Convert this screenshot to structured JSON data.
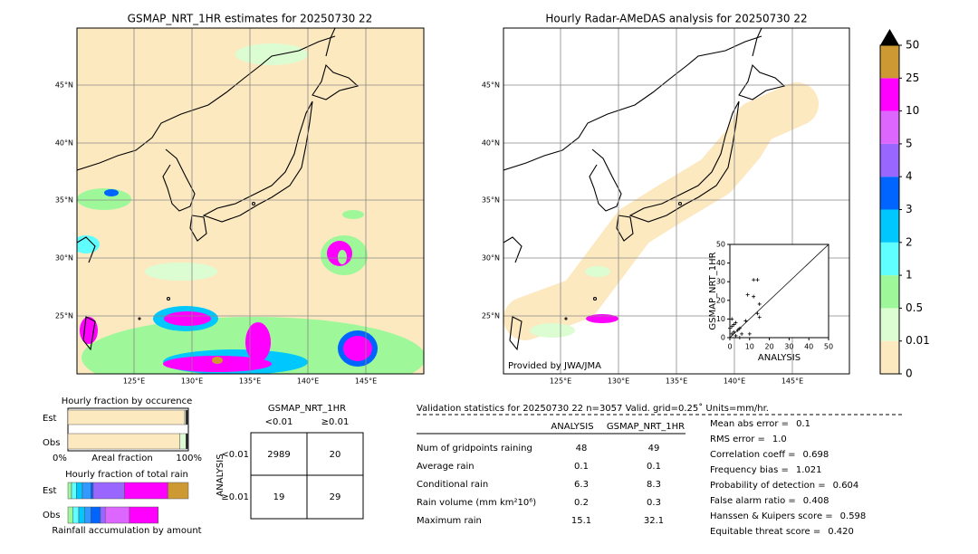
{
  "maps": {
    "left": {
      "title": "GSMAP_NRT_1HR estimates for 20250730 22"
    },
    "right": {
      "title": "Hourly Radar-AMeDAS analysis for 20250730 22",
      "credit": "Provided by JWA/JMA"
    },
    "lat_labels": [
      "45°N",
      "40°N",
      "35°N",
      "30°N",
      "25°N"
    ],
    "lon_labels": [
      "125°E",
      "130°E",
      "135°E",
      "140°E",
      "145°E"
    ]
  },
  "scatter": {
    "type": "scatter",
    "xlabel": "ANALYSIS",
    "ylabel": "GSMAP_NRT_1HR",
    "xlim": [
      0,
      50
    ],
    "ylim": [
      0,
      50
    ],
    "xticks": [
      0,
      10,
      20,
      30,
      40,
      50
    ],
    "yticks": [
      0,
      10,
      20,
      30,
      40,
      50
    ],
    "x": [
      0,
      1,
      2,
      3,
      5,
      8,
      10,
      12,
      14,
      9,
      12,
      15,
      15,
      14,
      1,
      3,
      5,
      0,
      1,
      6,
      4,
      2
    ],
    "y": [
      0,
      2,
      7,
      8,
      5,
      9,
      2,
      31,
      31,
      23,
      22,
      18,
      11,
      13,
      10,
      1,
      0,
      5,
      6,
      2,
      4,
      3
    ]
  },
  "colorbar": {
    "levels": [
      0,
      0.01,
      0.5,
      1,
      2,
      3,
      4,
      5,
      10,
      25,
      50
    ],
    "colors": [
      "#fde9c0",
      "#dcfcd2",
      "#9ef89a",
      "#60ffff",
      "#00c8ff",
      "#0064ff",
      "#9966ff",
      "#dd66ff",
      "#ff00ff",
      "#cc9933"
    ]
  },
  "fraction_occurrence": {
    "title": "Hourly fraction by occurence",
    "rows": [
      "Est",
      "Obs"
    ],
    "xmin_label": "0%",
    "xlabel": "Areal fraction",
    "xmax_label": "100%",
    "xlim": [
      0,
      100
    ],
    "colors": [
      "#fde9c0",
      "#dcfcd2",
      "#222222"
    ],
    "est": [
      97,
      1,
      2
    ],
    "obs": [
      93,
      5,
      2
    ]
  },
  "fraction_rain": {
    "title": "Hourly fraction of total rain",
    "rows": [
      "Est",
      "Obs"
    ],
    "xlabel": "Rainfall accumulation by amount",
    "xlim": [
      0,
      100
    ],
    "colors": [
      "#9ef89a",
      "#60ffff",
      "#00c8ff",
      "#3399ff",
      "#0064ff",
      "#9966ff",
      "#dd66ff",
      "#ff00ff",
      "#cc9933"
    ],
    "est": [
      3,
      4,
      5,
      7,
      2,
      26,
      0,
      36,
      17
    ],
    "obs": [
      4,
      5,
      5,
      5,
      8,
      4,
      20,
      24,
      0
    ]
  },
  "contingency": {
    "col_title": "GSMAP_NRT_1HR",
    "cols": [
      "<0.01",
      "≥0.01"
    ],
    "row_title": "ANALYSIS",
    "rows": [
      "<0.01",
      "≥0.01"
    ],
    "cells": [
      [
        2989,
        20
      ],
      [
        19,
        29
      ]
    ]
  },
  "validation": {
    "header": "Validation statistics for 20250730 22  n=3057 Valid. grid=0.25˚ Units=mm/hr.",
    "columns": [
      "ANALYSIS",
      "GSMAP_NRT_1HR"
    ],
    "rows": [
      [
        "Num of gridpoints raining",
        48,
        49
      ],
      [
        "Average rain",
        0.1,
        0.1
      ],
      [
        "Conditional rain",
        6.3,
        8.3
      ],
      [
        "Rain volume (mm km²10⁶)",
        0.2,
        0.3
      ],
      [
        "Maximum rain",
        15.1,
        32.1
      ]
    ],
    "scores": [
      [
        "Mean abs error =",
        "0.1"
      ],
      [
        "RMS error =",
        "1.0"
      ],
      [
        "Correlation coeff =",
        "0.698"
      ],
      [
        "Frequency bias =",
        "1.021"
      ],
      [
        "Probability of detection =",
        "0.604"
      ],
      [
        "False alarm ratio =",
        "0.408"
      ],
      [
        "Hanssen & Kuipers score =",
        "0.598"
      ],
      [
        "Equitable threat score =",
        "0.420"
      ]
    ]
  }
}
